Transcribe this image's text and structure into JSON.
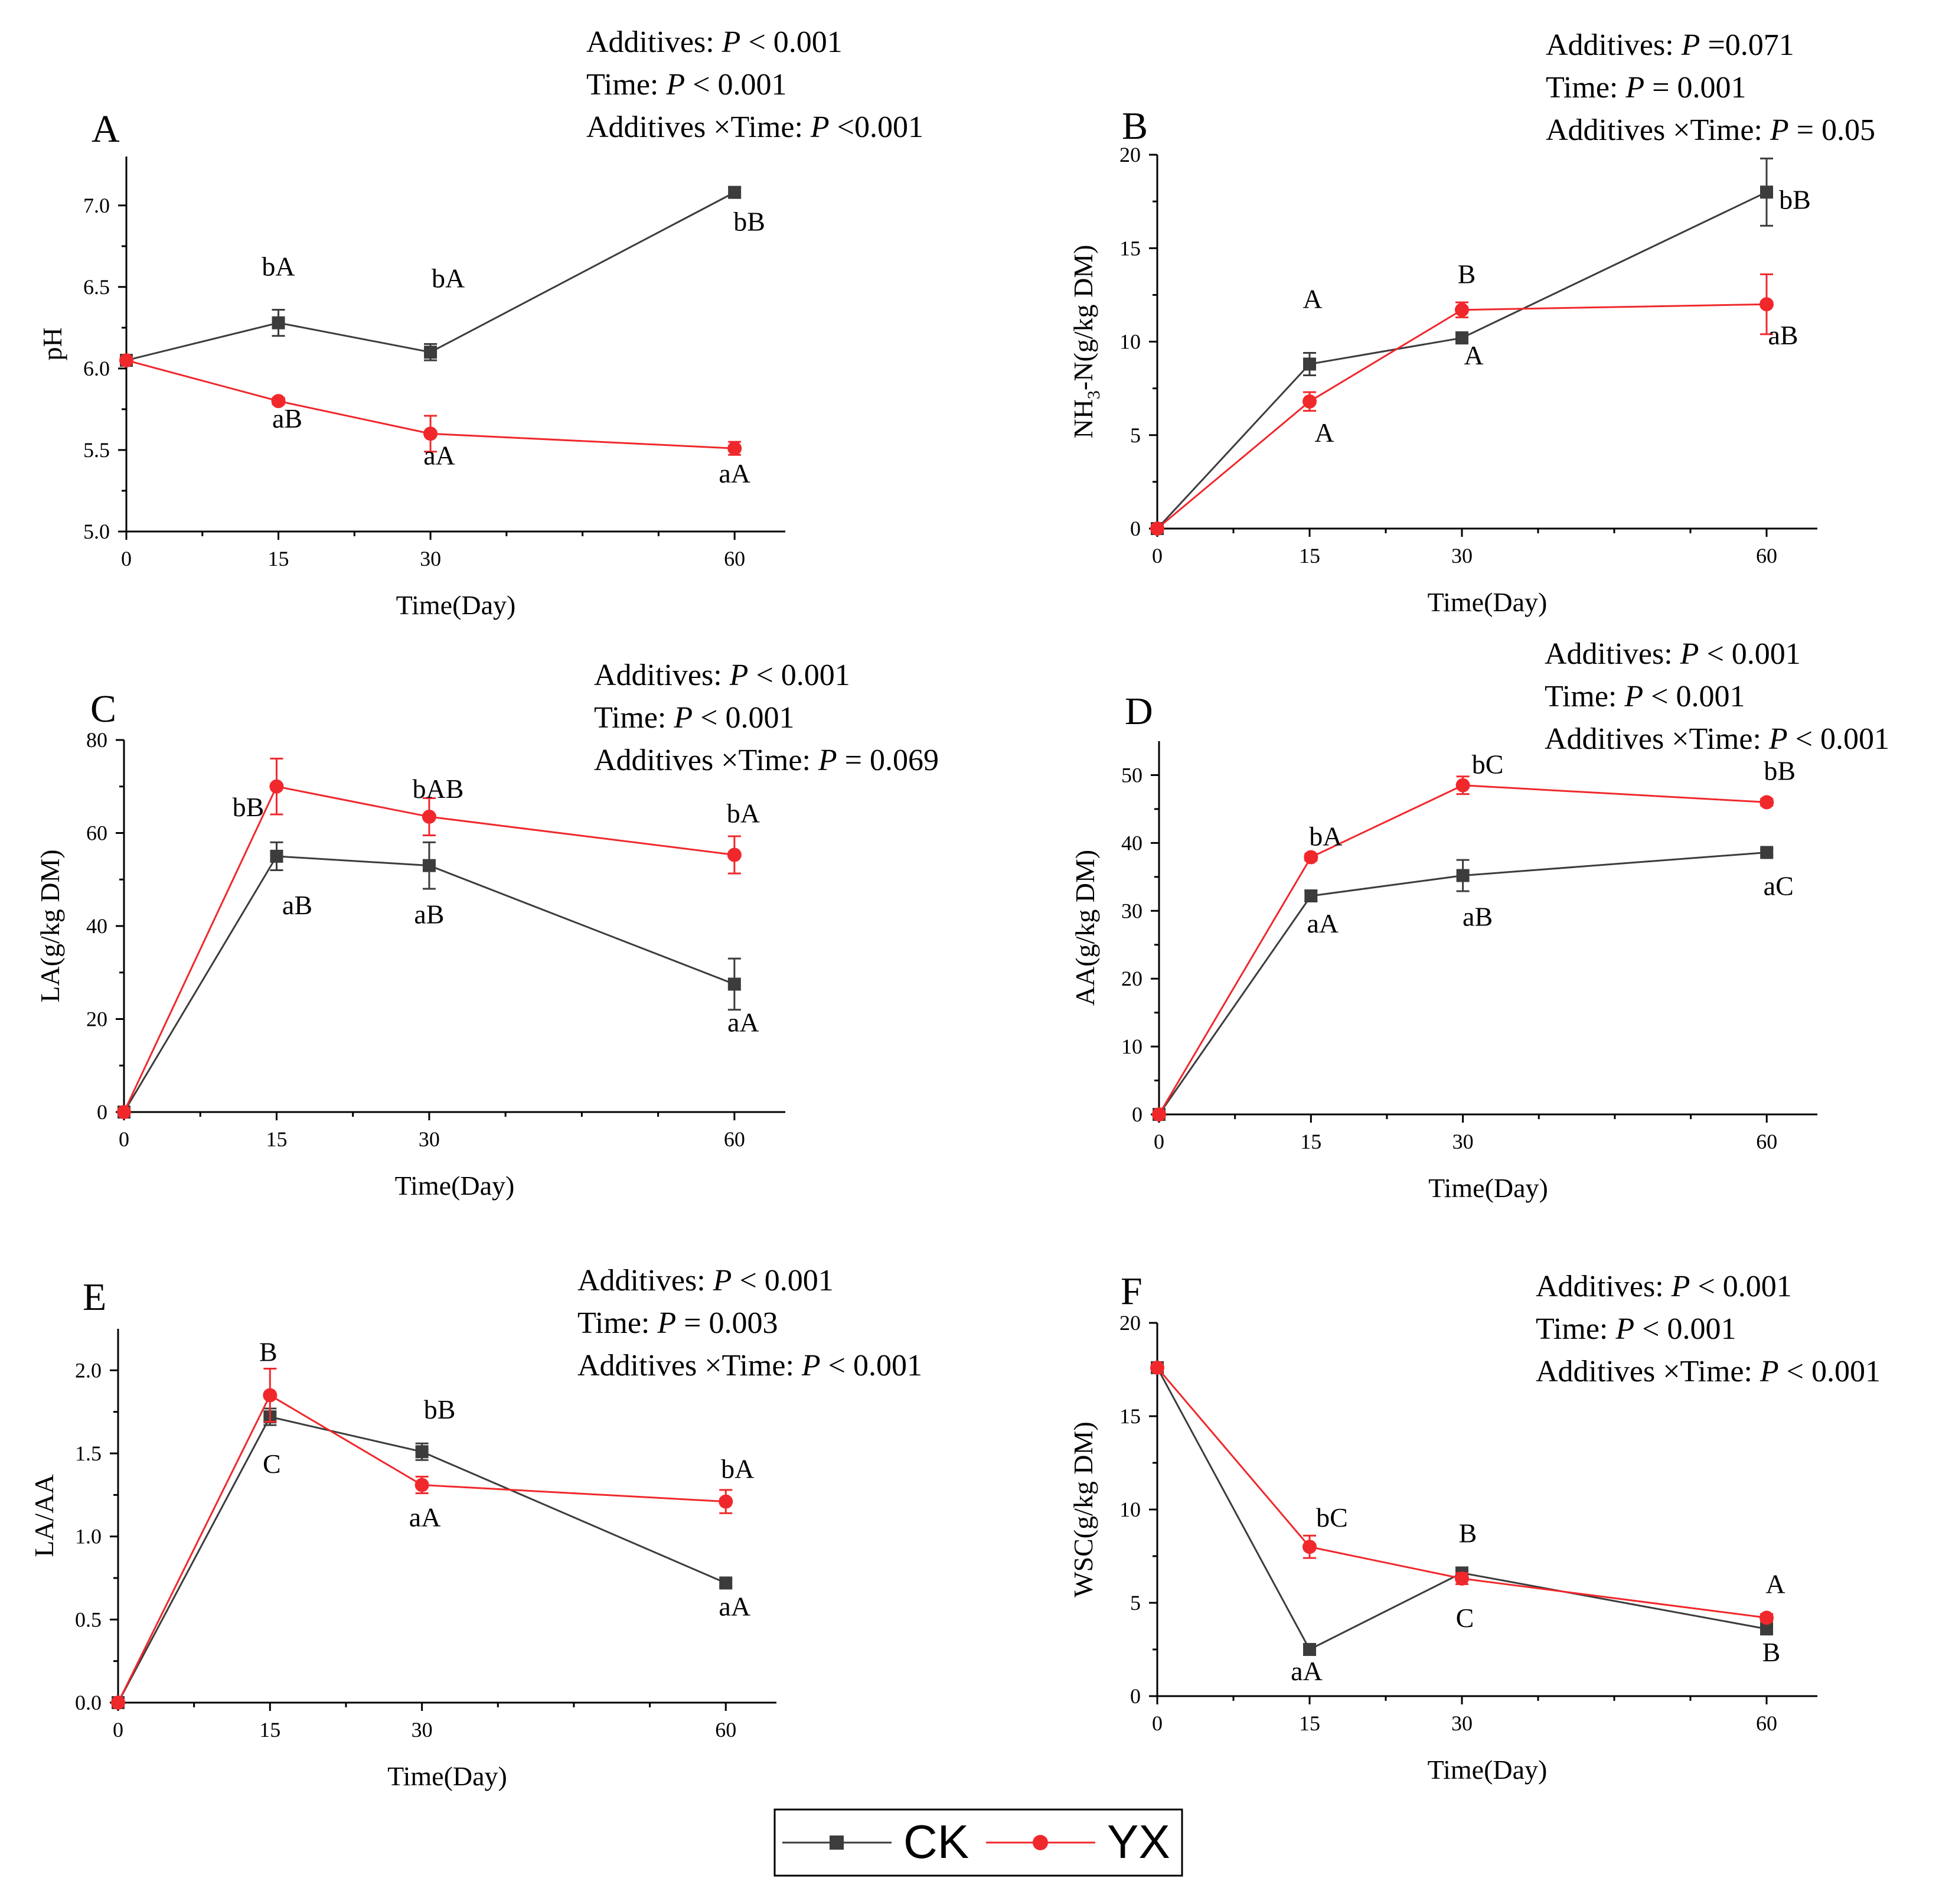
{
  "colors": {
    "ck": "#3c3c3c",
    "yx": "#f0282c",
    "axis": "#000000"
  },
  "legend": {
    "ck_label": "CK",
    "yx_label": "YX"
  },
  "chart_data": [
    {
      "type": "line",
      "panel_label": "A",
      "xlabel": "Time(Day)",
      "ylabel": "pH",
      "xlim": [
        0,
        65
      ],
      "ylim": [
        5.0,
        7.3
      ],
      "x_ticks": [
        0,
        15,
        30,
        60
      ],
      "y_ticks": [
        5.0,
        5.5,
        6.0,
        6.5,
        7.0
      ],
      "y_tick_labels": [
        "5.0",
        "5.5",
        "6.0",
        "6.5",
        "7.0"
      ],
      "stats": [
        {
          "label": "Additives: ",
          "p": "P",
          "rest": " < 0.001"
        },
        {
          "label": "Time: ",
          "p": "P",
          "rest": " < 0.001"
        },
        {
          "label": "Additives ×Time: ",
          "p": "P",
          "rest": " <0.001"
        }
      ],
      "series": [
        {
          "name": "CK",
          "x": [
            0,
            15,
            30,
            60
          ],
          "values": [
            6.05,
            6.28,
            6.1,
            7.08
          ],
          "errors": [
            0,
            0.08,
            0.05,
            0.03
          ],
          "letters": [
            "",
            "bA",
            "bA",
            "bB"
          ]
        },
        {
          "name": "YX",
          "x": [
            0,
            15,
            30,
            60
          ],
          "values": [
            6.05,
            5.8,
            5.6,
            5.51
          ],
          "errors": [
            0,
            0.02,
            0.11,
            0.04
          ],
          "letters": [
            "",
            "aB",
            "aA",
            "aA"
          ]
        }
      ]
    },
    {
      "type": "line",
      "panel_label": "B",
      "xlabel": "Time(Day)",
      "ylabel_parts": [
        "NH",
        "3",
        "-N(g/kg DM)"
      ],
      "xlim": [
        0,
        65
      ],
      "ylim": [
        0,
        20
      ],
      "x_ticks": [
        0,
        15,
        30,
        60
      ],
      "y_ticks": [
        0,
        5,
        10,
        15,
        20
      ],
      "y_tick_labels": [
        "0",
        "5",
        "10",
        "15",
        "20"
      ],
      "stats": [
        {
          "label": "Additives: ",
          "p": "P",
          "rest": " =0.071"
        },
        {
          "label": "Time: ",
          "p": "P",
          "rest": " = 0.001"
        },
        {
          "label": "Additives ×Time: ",
          "p": "P",
          "rest": " = 0.05"
        }
      ],
      "series": [
        {
          "name": "CK",
          "x": [
            0,
            15,
            30,
            60
          ],
          "values": [
            0,
            8.8,
            10.2,
            18.0
          ],
          "errors": [
            0,
            0.6,
            0.3,
            1.8
          ],
          "letters": [
            "",
            "A",
            "A",
            "bB"
          ]
        },
        {
          "name": "YX",
          "x": [
            0,
            15,
            30,
            60
          ],
          "values": [
            0,
            6.8,
            11.7,
            12.0
          ],
          "errors": [
            0,
            0.5,
            0.4,
            1.6
          ],
          "letters": [
            "",
            "A",
            "B",
            "aB"
          ]
        }
      ]
    },
    {
      "type": "line",
      "panel_label": "C",
      "xlabel": "Time(Day)",
      "ylabel": "LA(g/kg DM)",
      "xlim": [
        0,
        65
      ],
      "ylim": [
        0,
        80
      ],
      "x_ticks": [
        0,
        15,
        30,
        60
      ],
      "y_ticks": [
        0,
        20,
        40,
        60,
        80
      ],
      "y_tick_labels": [
        "0",
        "20",
        "40",
        "60",
        "80"
      ],
      "stats": [
        {
          "label": "Additives: ",
          "p": "P",
          "rest": " < 0.001"
        },
        {
          "label": "Time: ",
          "p": "P",
          "rest": " < 0.001"
        },
        {
          "label": "Additives ×Time: ",
          "p": "P",
          "rest": " = 0.069"
        }
      ],
      "series": [
        {
          "name": "CK",
          "x": [
            0,
            15,
            30,
            60
          ],
          "values": [
            0,
            55.0,
            53.0,
            27.5
          ],
          "errors": [
            0,
            3.0,
            5.0,
            5.5
          ],
          "letters": [
            "",
            "aB",
            "aB",
            "aA"
          ]
        },
        {
          "name": "YX",
          "x": [
            0,
            15,
            30,
            60
          ],
          "values": [
            0,
            70.0,
            63.5,
            55.3
          ],
          "errors": [
            0,
            6.0,
            4.0,
            4.0
          ],
          "letters": [
            "",
            "bB",
            "bAB",
            "bA"
          ]
        }
      ]
    },
    {
      "type": "line",
      "panel_label": "D",
      "xlabel": "Time(Day)",
      "ylabel": "AA(g/kg DM)",
      "xlim": [
        0,
        65
      ],
      "ylim": [
        0,
        55
      ],
      "x_ticks": [
        0,
        15,
        30,
        60
      ],
      "y_ticks": [
        0,
        10,
        20,
        30,
        40,
        50
      ],
      "y_tick_labels": [
        "0",
        "10",
        "20",
        "30",
        "40",
        "50"
      ],
      "stats": [
        {
          "label": "Additives: ",
          "p": "P",
          "rest": " < 0.001"
        },
        {
          "label": "Time: ",
          "p": "P",
          "rest": " < 0.001"
        },
        {
          "label": "Additives ×Time: ",
          "p": "P",
          "rest": " < 0.001"
        }
      ],
      "series": [
        {
          "name": "CK",
          "x": [
            0,
            15,
            30,
            60
          ],
          "values": [
            0,
            32.2,
            35.2,
            38.6
          ],
          "errors": [
            0,
            0.8,
            2.3,
            0.5
          ],
          "letters": [
            "",
            "aA",
            "aB",
            "aC"
          ]
        },
        {
          "name": "YX",
          "x": [
            0,
            15,
            30,
            60
          ],
          "values": [
            0,
            37.9,
            48.5,
            46.0
          ],
          "errors": [
            0,
            0.5,
            1.3,
            0.5
          ],
          "letters": [
            "",
            "bA",
            "bC",
            "bB"
          ]
        }
      ]
    },
    {
      "type": "line",
      "panel_label": "E",
      "xlabel": "Time(Day)",
      "ylabel": "LA/AA",
      "xlim": [
        0,
        65
      ],
      "ylim": [
        0,
        2.25
      ],
      "x_ticks": [
        0,
        15,
        30,
        60
      ],
      "y_ticks": [
        0.0,
        0.5,
        1.0,
        1.5,
        2.0
      ],
      "y_tick_labels": [
        "0.0",
        "0.5",
        "1.0",
        "1.5",
        "2.0"
      ],
      "stats": [
        {
          "label": "Additives: ",
          "p": "P",
          "rest": " < 0.001"
        },
        {
          "label": "Time: ",
          "p": "P",
          "rest": " = 0.003"
        },
        {
          "label": "Additives ×Time: ",
          "p": "P",
          "rest": " < 0.001"
        }
      ],
      "series": [
        {
          "name": "CK",
          "x": [
            0,
            15,
            30,
            60
          ],
          "values": [
            0,
            1.72,
            1.51,
            0.72
          ],
          "errors": [
            0,
            0.05,
            0.05,
            0.02
          ],
          "letters": [
            "",
            "C",
            "bB",
            "aA"
          ]
        },
        {
          "name": "YX",
          "x": [
            0,
            15,
            30,
            60
          ],
          "values": [
            0,
            1.85,
            1.31,
            1.21
          ],
          "errors": [
            0,
            0.16,
            0.05,
            0.07
          ],
          "letters": [
            "",
            "B",
            "aA",
            "bA"
          ]
        }
      ]
    },
    {
      "type": "line",
      "panel_label": "F",
      "xlabel": "Time(Day)",
      "ylabel": "WSC(g/kg DM)",
      "xlim": [
        0,
        65
      ],
      "ylim": [
        0,
        20
      ],
      "x_ticks": [
        0,
        15,
        30,
        60
      ],
      "y_ticks": [
        0,
        5,
        10,
        15,
        20
      ],
      "y_tick_labels": [
        "0",
        "5",
        "10",
        "15",
        "20"
      ],
      "stats": [
        {
          "label": "Additives: ",
          "p": "P",
          "rest": " < 0.001"
        },
        {
          "label": "Time: ",
          "p": "P",
          "rest": " < 0.001"
        },
        {
          "label": "Additives ×Time: ",
          "p": "P",
          "rest": " < 0.001"
        }
      ],
      "series": [
        {
          "name": "CK",
          "x": [
            0,
            15,
            30,
            60
          ],
          "values": [
            17.6,
            2.5,
            6.6,
            3.6
          ],
          "errors": [
            0,
            0.2,
            0.3,
            0.2
          ],
          "letters": [
            "",
            "aA",
            "B",
            "B"
          ]
        },
        {
          "name": "YX",
          "x": [
            0,
            15,
            30,
            60
          ],
          "values": [
            17.6,
            8.0,
            6.3,
            4.2
          ],
          "errors": [
            0,
            0.6,
            0.3,
            0.2
          ],
          "letters": [
            "",
            "bC",
            "C",
            "A"
          ]
        }
      ]
    }
  ]
}
